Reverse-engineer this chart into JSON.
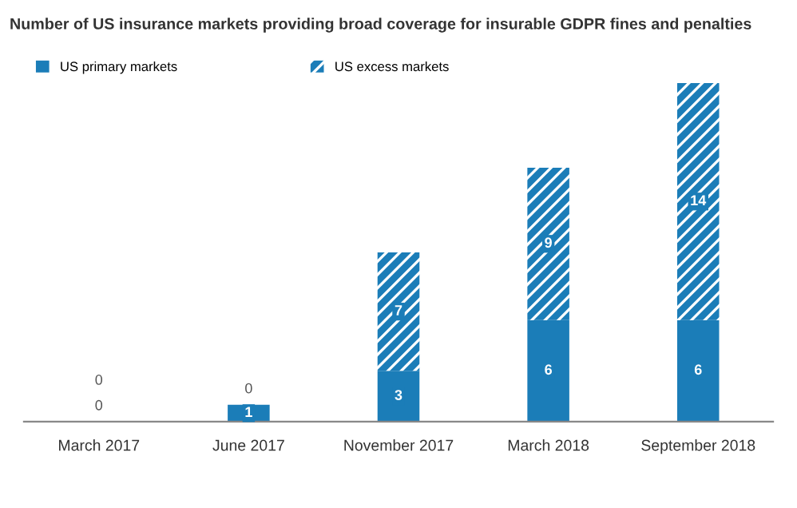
{
  "chart_data": {
    "type": "bar",
    "title": "Number of US insurance markets providing broad coverage for insurable GDPR fines and penalties",
    "categories": [
      "March 2017",
      "June 2017",
      "November 2017",
      "March 2018",
      "September 2018"
    ],
    "stacked": true,
    "data_labels": true,
    "legend": "top left",
    "grid": false,
    "series": [
      {
        "name": "US primary markets",
        "color": "#1b7db8",
        "values": [
          0,
          1,
          3,
          6,
          6
        ]
      },
      {
        "name": "US excess markets",
        "color": "#1b7db8",
        "values": [
          0,
          0,
          7,
          9,
          14
        ]
      }
    ]
  }
}
